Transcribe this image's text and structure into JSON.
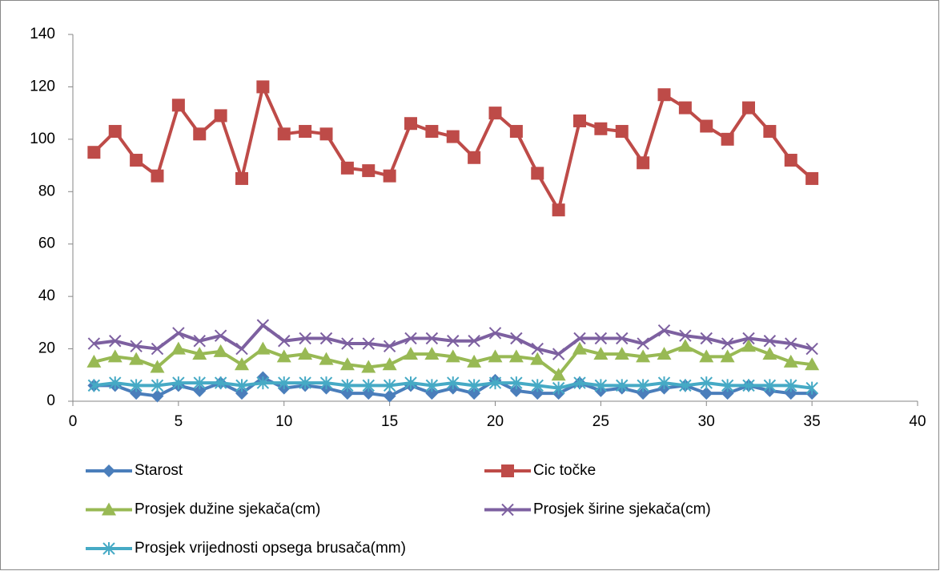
{
  "chart_data": {
    "type": "line",
    "x": [
      1,
      2,
      3,
      4,
      5,
      6,
      7,
      8,
      9,
      10,
      11,
      12,
      13,
      14,
      15,
      16,
      17,
      18,
      19,
      20,
      21,
      22,
      23,
      24,
      25,
      26,
      27,
      28,
      29,
      30,
      31,
      32,
      33,
      34,
      35
    ],
    "series": [
      {
        "name": "Starost",
        "color": "#4a7ebb",
        "marker": "diamond",
        "values": [
          6,
          6,
          3,
          2,
          6,
          4,
          7,
          3,
          9,
          5,
          6,
          5,
          3,
          3,
          2,
          6,
          3,
          5,
          3,
          8,
          4,
          3,
          3,
          7,
          4,
          5,
          3,
          5,
          6,
          3,
          3,
          6,
          4,
          3,
          3
        ]
      },
      {
        "name": "Cic točke",
        "color": "#be4b48",
        "marker": "square",
        "values": [
          95,
          103,
          92,
          86,
          113,
          102,
          109,
          85,
          120,
          102,
          103,
          102,
          89,
          88,
          86,
          106,
          103,
          101,
          93,
          110,
          103,
          87,
          73,
          107,
          104,
          103,
          91,
          117,
          112,
          105,
          100,
          112,
          103,
          92,
          85
        ]
      },
      {
        "name": "Prosjek dužine sjekača(cm)",
        "color": "#98b954",
        "marker": "triangle",
        "values": [
          15,
          17,
          16,
          13,
          20,
          18,
          19,
          14,
          20,
          17,
          18,
          16,
          14,
          13,
          14,
          18,
          18,
          17,
          15,
          17,
          17,
          16,
          10,
          20,
          18,
          18,
          17,
          18,
          21,
          17,
          17,
          21,
          18,
          15,
          14
        ]
      },
      {
        "name": "Prosjek širine sjekača(cm)",
        "color": "#7d60a0",
        "marker": "x",
        "values": [
          22,
          23,
          21,
          20,
          26,
          23,
          25,
          20,
          29,
          23,
          24,
          24,
          22,
          22,
          21,
          24,
          24,
          23,
          23,
          26,
          24,
          20,
          18,
          24,
          24,
          24,
          22,
          27,
          25,
          24,
          22,
          24,
          23,
          22,
          20
        ]
      },
      {
        "name": "Prosjek vrijednosti opsega brusača(mm)",
        "color": "#46aac5",
        "marker": "asterisk",
        "values": [
          6,
          7,
          6,
          6,
          7,
          7,
          7,
          6,
          7,
          7,
          7,
          7,
          6,
          6,
          6,
          7,
          6,
          7,
          6,
          7,
          7,
          6,
          5,
          7,
          6,
          6,
          6,
          7,
          6,
          7,
          6,
          6,
          6,
          6,
          5
        ]
      }
    ],
    "xlim": [
      0,
      40
    ],
    "xticks": [
      0,
      5,
      10,
      15,
      20,
      25,
      30,
      35,
      40
    ],
    "ylim": [
      0,
      140
    ],
    "yticks": [
      0,
      20,
      40,
      60,
      80,
      100,
      120,
      140
    ]
  }
}
